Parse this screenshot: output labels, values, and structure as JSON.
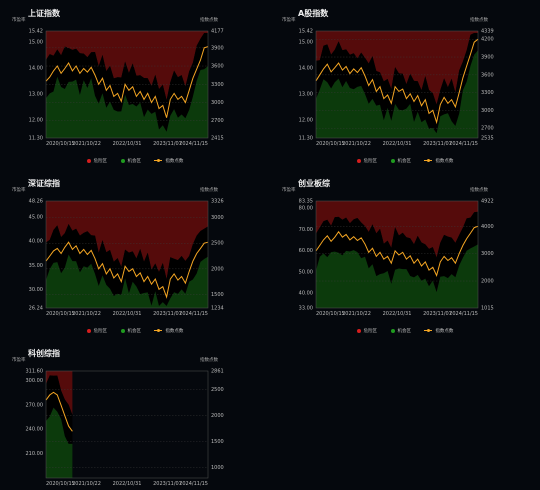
{
  "legend_labels": {
    "danger": "危险区",
    "opportunity": "机会区",
    "index": "指数点数"
  },
  "axis_titles": {
    "left": "市盈率",
    "right": "指数点数"
  },
  "colors": {
    "danger": "#5a0c0c",
    "opportunity": "#0d3d0d",
    "index": "#f5a623",
    "legend_danger": "#d61e1e",
    "legend_opportunity": "#1f9a1f"
  },
  "chart_data": [
    {
      "type": "area",
      "title": "上证指数",
      "x_ticks": [
        "2020/10/15",
        "2021/10/22",
        "2022/10/31",
        "2023/11/07",
        "2024/11/15"
      ],
      "y_left_ticks": [
        "15.42",
        "15.00",
        "14.00",
        "13.00",
        "12.00",
        "11.30"
      ],
      "y_left_range": [
        11.3,
        15.42
      ],
      "y_right_ticks": [
        "4177",
        "3900",
        "3600",
        "3300",
        "3000",
        "2700",
        "2415"
      ],
      "y_right_range": [
        2415,
        4177
      ],
      "danger_threshold_pe": 15.42,
      "opportunity_threshold_pe": 11.3,
      "series": [
        {
          "values": [
            3350,
            3420,
            3520,
            3600,
            3480,
            3560,
            3650,
            3520,
            3600,
            3480,
            3560,
            3500,
            3580,
            3450,
            3300,
            3400,
            3200,
            3280,
            3100,
            3150,
            3020,
            3300,
            3200,
            3260,
            3100,
            3180,
            3050,
            3150,
            3000,
            3100,
            2900,
            2950,
            2750,
            3050,
            3150,
            3050,
            3100,
            3000,
            3200,
            3400,
            3550,
            3700,
            3900,
            3920
          ]
        }
      ]
    },
    {
      "type": "area",
      "title": "A股指数",
      "x_ticks": [
        "2020/10/15",
        "2021/10/22",
        "2022/10/31",
        "2023/11/07",
        "2024/11/15"
      ],
      "y_left_ticks": [
        "15.42",
        "15.00",
        "14.00",
        "13.00",
        "12.00",
        "11.30"
      ],
      "y_left_range": [
        11.3,
        15.42
      ],
      "y_right_ticks": [
        "4339",
        "4200",
        "3900",
        "3600",
        "3300",
        "3000",
        "2700",
        "2535"
      ],
      "y_right_range": [
        2535,
        4339
      ],
      "danger_threshold_pe": 15.42,
      "opportunity_threshold_pe": 11.3,
      "series": [
        {
          "values": [
            3500,
            3600,
            3700,
            3780,
            3650,
            3720,
            3800,
            3680,
            3740,
            3620,
            3700,
            3640,
            3720,
            3580,
            3420,
            3520,
            3320,
            3400,
            3200,
            3260,
            3120,
            3400,
            3320,
            3360,
            3200,
            3280,
            3150,
            3250,
            3080,
            3180,
            2950,
            3000,
            2800,
            3100,
            3220,
            3120,
            3180,
            3060,
            3300,
            3550,
            3750,
            3950,
            4150,
            4200
          ]
        }
      ]
    },
    {
      "type": "area",
      "title": "深证综指",
      "x_ticks": [
        "2020/10/15",
        "2021/10/22",
        "2022/10/31",
        "2023/11/07",
        "2024/11/15"
      ],
      "y_left_ticks": [
        "48.26",
        "45.00",
        "40.00",
        "35.00",
        "30.00",
        "26.24"
      ],
      "y_left_range": [
        26.24,
        48.26
      ],
      "y_right_ticks": [
        "3326",
        "3000",
        "2500",
        "2000",
        "1500",
        "1234"
      ],
      "y_right_range": [
        1234,
        3326
      ],
      "danger_threshold_pe": 48.26,
      "opportunity_threshold_pe": 26.24,
      "series": [
        {
          "values": [
            2150,
            2250,
            2350,
            2400,
            2300,
            2420,
            2520,
            2380,
            2450,
            2300,
            2380,
            2280,
            2360,
            2200,
            2000,
            2100,
            1900,
            2000,
            1820,
            1900,
            1750,
            2050,
            1950,
            2000,
            1850,
            1920,
            1750,
            1850,
            1700,
            1800,
            1600,
            1650,
            1450,
            1800,
            1900,
            1780,
            1850,
            1720,
            1950,
            2150,
            2300,
            2400,
            2500,
            2520
          ]
        }
      ]
    },
    {
      "type": "area",
      "title": "创业板综",
      "x_ticks": [
        "2020/10/15",
        "2021/10/22",
        "2022/10/31",
        "2023/11/07",
        "2024/11/15"
      ],
      "y_left_ticks": [
        "83.35",
        "80.00",
        "70.00",
        "60.00",
        "50.00",
        "40.00",
        "33.00"
      ],
      "y_left_range": [
        33.0,
        83.35
      ],
      "y_right_ticks": [
        "4922",
        "4000",
        "3000",
        "2000",
        "1015"
      ],
      "y_right_range": [
        1015,
        4922
      ],
      "danger_threshold_pe": 83.35,
      "opportunity_threshold_pe": 33.0,
      "series": [
        {
          "values": [
            3100,
            3300,
            3500,
            3650,
            3450,
            3600,
            3800,
            3600,
            3700,
            3500,
            3620,
            3480,
            3580,
            3350,
            3050,
            3200,
            2900,
            3050,
            2800,
            2900,
            2650,
            3100,
            2950,
            3050,
            2800,
            2920,
            2650,
            2800,
            2550,
            2700,
            2400,
            2500,
            2200,
            2700,
            2900,
            2750,
            2850,
            2650,
            3000,
            3300,
            3550,
            3750,
            3950,
            4000
          ]
        }
      ]
    },
    {
      "type": "area",
      "title": "科创综指",
      "x_ticks": [
        "2020/10/15",
        "2021/10/22",
        "2022/10/31",
        "2023/11/07",
        "2024/11/15"
      ],
      "y_left_ticks": [
        "311.60",
        "300.00",
        "270.00",
        "240.00",
        "210.00"
      ],
      "y_left_range": [
        180.0,
        311.6
      ],
      "y_right_ticks": [
        "2861",
        "2500",
        "2000",
        "1500",
        "1000"
      ],
      "y_right_range": [
        800,
        2861
      ],
      "danger_threshold_pe": 311.6,
      "opportunity_threshold_pe": 180.0,
      "series": [
        {
          "values": [
            2300,
            2400,
            2450,
            2400,
            2200,
            2000,
            1800,
            1700
          ]
        }
      ]
    }
  ]
}
